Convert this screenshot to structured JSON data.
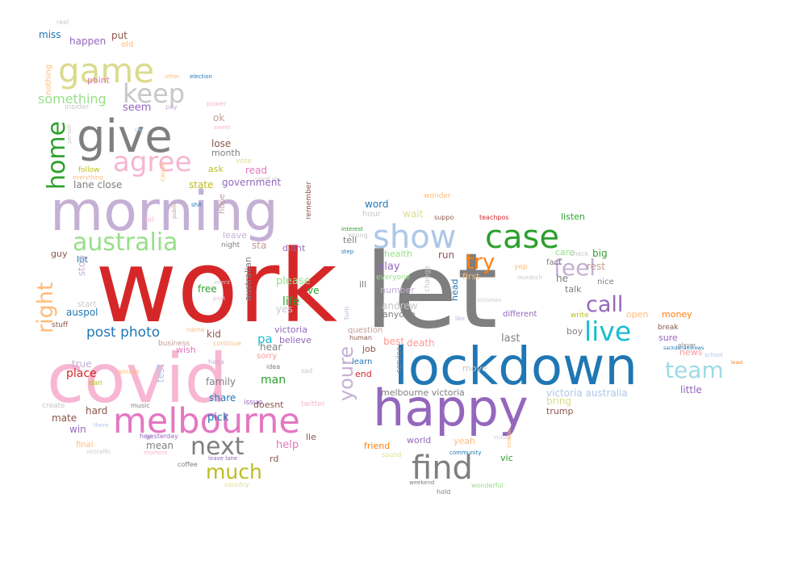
{
  "words": [
    {
      "t": "work",
      "c": "#d62728"
    },
    {
      "t": "let",
      "c": "#7f7f7f"
    },
    {
      "t": "covid",
      "c": "#f7b6d2"
    },
    {
      "t": "lockdown",
      "c": "#1f77b4"
    },
    {
      "t": "morning",
      "c": "#c5b0d5"
    },
    {
      "t": "happy",
      "c": "#9467bd"
    },
    {
      "t": "give",
      "c": "#7f7f7f"
    },
    {
      "t": "melbourne",
      "c": "#e377c2"
    },
    {
      "t": "show",
      "c": "#aec7e8"
    },
    {
      "t": "case",
      "c": "#2ca02c"
    },
    {
      "t": "find",
      "c": "#7f7f7f"
    },
    {
      "t": "game",
      "c": "#dbdb8d"
    },
    {
      "t": "agree",
      "c": "#f7b6d2"
    },
    {
      "t": "australia",
      "c": "#98df8a"
    },
    {
      "t": "keep",
      "c": "#c7c7c7"
    },
    {
      "t": "live",
      "c": "#17becf"
    },
    {
      "t": "team",
      "c": "#9edae5"
    },
    {
      "t": "home",
      "c": "#2ca02c"
    },
    {
      "t": "right",
      "c": "#ffbb78"
    },
    {
      "t": "next",
      "c": "#7f7f7f"
    },
    {
      "t": "much",
      "c": "#bcbd22"
    },
    {
      "t": "call",
      "c": "#9467bd"
    },
    {
      "t": "feel",
      "c": "#c5b0d5"
    },
    {
      "t": "try",
      "c": "#ff7f0e"
    },
    {
      "t": "youre",
      "c": "#c5b0d5"
    },
    {
      "t": "post photo",
      "c": "#1f77b4"
    },
    {
      "t": "something",
      "c": "#98df8a"
    },
    {
      "t": "miss",
      "c": "#1f77b4"
    },
    {
      "t": "happen",
      "c": "#9467bd"
    },
    {
      "t": "put",
      "c": "#8c564b"
    },
    {
      "t": "old",
      "c": "#ffbb78"
    },
    {
      "t": "real",
      "c": "#c7c7c7"
    },
    {
      "t": "nothing",
      "c": "#ffbb78"
    },
    {
      "t": "point",
      "c": "#e377c2"
    },
    {
      "t": "other",
      "c": "#ffbb78"
    },
    {
      "t": "election",
      "c": "#1f77b4"
    },
    {
      "t": "insider",
      "c": "#c7c7c7"
    },
    {
      "t": "seem",
      "c": "#9467bd"
    },
    {
      "t": "pay",
      "c": "#c5b0d5"
    },
    {
      "t": "power",
      "c": "#f7b6d2"
    },
    {
      "t": "person",
      "c": "#c7c7c7"
    },
    {
      "t": "car",
      "c": "#aec7e8"
    },
    {
      "t": "sweet",
      "c": "#f7b6d2"
    },
    {
      "t": "ok",
      "c": "#c49c94"
    },
    {
      "t": "lose",
      "c": "#8c564b"
    },
    {
      "t": "month",
      "c": "#7f7f7f"
    },
    {
      "t": "vote",
      "c": "#dbdb8d"
    },
    {
      "t": "ask",
      "c": "#bcbd22"
    },
    {
      "t": "follow",
      "c": "#bcbd22"
    },
    {
      "t": "everything",
      "c": "#ffbb78"
    },
    {
      "t": "read",
      "c": "#e377c2"
    },
    {
      "t": "covid vic",
      "c": "#c7c7c7"
    },
    {
      "t": "state",
      "c": "#bcbd22"
    },
    {
      "t": "government",
      "c": "#9467bd"
    },
    {
      "t": "lane close",
      "c": "#7f7f7f"
    },
    {
      "t": "cause",
      "c": "#ffbb78"
    },
    {
      "t": "lol",
      "c": "#f7b6d2"
    },
    {
      "t": "public",
      "c": "#c49c94"
    },
    {
      "t": "shit",
      "c": "#1f77b4"
    },
    {
      "t": "hope",
      "c": "#c49c94"
    },
    {
      "t": "remember",
      "c": "#8c564b"
    },
    {
      "t": "guy",
      "c": "#8c564b"
    },
    {
      "t": "leave",
      "c": "#c5b0d5"
    },
    {
      "t": "night",
      "c": "#7f7f7f"
    },
    {
      "t": "sta",
      "c": "#c49c94"
    },
    {
      "t": "didnt",
      "c": "#9467bd"
    },
    {
      "t": "lot",
      "c": "#1f77b4"
    },
    {
      "t": "stop",
      "c": "#c5b0d5"
    },
    {
      "t": "free",
      "c": "#2ca02c"
    },
    {
      "t": "event",
      "c": "#c7c7c7"
    },
    {
      "t": "post",
      "c": "#f7b6d2"
    },
    {
      "t": "australian",
      "c": "#7f7f7f"
    },
    {
      "t": "please",
      "c": "#98df8a"
    },
    {
      "t": "life",
      "c": "#2ca02c"
    },
    {
      "t": "ve",
      "c": "#2ca02c"
    },
    {
      "t": "yes",
      "c": "#c7c7c7"
    },
    {
      "t": "start",
      "c": "#c7c7c7"
    },
    {
      "t": "auspol",
      "c": "#1f77b4"
    },
    {
      "t": "stuff",
      "c": "#8c564b"
    },
    {
      "t": "kid",
      "c": "#8c564b"
    },
    {
      "t": "name",
      "c": "#ffbb78"
    },
    {
      "t": "pa",
      "c": "#17becf"
    },
    {
      "t": "victoria",
      "c": "#9467bd"
    },
    {
      "t": "believe",
      "c": "#9467bd"
    },
    {
      "t": "hear",
      "c": "#7f7f7f"
    },
    {
      "t": "sorry",
      "c": "#ff9896"
    },
    {
      "t": "business",
      "c": "#c49c94"
    },
    {
      "t": "continue",
      "c": "#ffbb78"
    },
    {
      "t": "wish",
      "c": "#e377c2"
    },
    {
      "t": "true",
      "c": "#c5b0d5"
    },
    {
      "t": "test",
      "c": "#aec7e8"
    },
    {
      "t": "place",
      "c": "#d62728"
    },
    {
      "t": "dan",
      "c": "#bcbd22"
    },
    {
      "t": "amaze",
      "c": "#ffbb78"
    },
    {
      "t": "haha",
      "c": "#c5b0d5"
    },
    {
      "t": "family",
      "c": "#7f7f7f"
    },
    {
      "t": "idea",
      "c": "#7f7f7f"
    },
    {
      "t": "man",
      "c": "#2ca02c"
    },
    {
      "t": "sad",
      "c": "#c7c7c7"
    },
    {
      "t": "create",
      "c": "#c7c7c7"
    },
    {
      "t": "music",
      "c": "#7f7f7f"
    },
    {
      "t": "hard",
      "c": "#8c564b"
    },
    {
      "t": "mate",
      "c": "#8c564b"
    },
    {
      "t": "win",
      "c": "#9467bd"
    },
    {
      "t": "there",
      "c": "#aec7e8"
    },
    {
      "t": "pick",
      "c": "#1f77b4"
    },
    {
      "t": "share",
      "c": "#1f77b4"
    },
    {
      "t": "issue",
      "c": "#9467bd"
    },
    {
      "t": "doesnt",
      "c": "#8c564b"
    },
    {
      "t": "twitter",
      "c": "#f7b6d2"
    },
    {
      "t": "lie",
      "c": "#8c564b"
    },
    {
      "t": "help",
      "c": "#e377c2"
    },
    {
      "t": "mean",
      "c": "#7f7f7f"
    },
    {
      "t": "hey",
      "c": "#9467bd"
    },
    {
      "t": "yesterday",
      "c": "#9467bd"
    },
    {
      "t": "final",
      "c": "#ffbb78"
    },
    {
      "t": "moment",
      "c": "#f7b6d2"
    },
    {
      "t": "victraffic",
      "c": "#c7c7c7"
    },
    {
      "t": "rd",
      "c": "#8c564b"
    },
    {
      "t": "coffee",
      "c": "#7f7f7f"
    },
    {
      "t": "leave lane",
      "c": "#9467bd"
    },
    {
      "t": "country",
      "c": "#dbdb8d"
    },
    {
      "t": "word",
      "c": "#1f77b4"
    },
    {
      "t": "wonder",
      "c": "#ffbb78"
    },
    {
      "t": "hour",
      "c": "#c7c7c7"
    },
    {
      "t": "wait",
      "c": "#dbdb8d"
    },
    {
      "t": "suppo",
      "c": "#8c564b"
    },
    {
      "t": "teachpos",
      "c": "#d62728"
    },
    {
      "t": "listen",
      "c": "#2ca02c"
    },
    {
      "t": "interest",
      "c": "#2ca02c"
    },
    {
      "t": "wrong",
      "c": "#c7c7c7"
    },
    {
      "t": "tell",
      "c": "#7f7f7f"
    },
    {
      "t": "step",
      "c": "#1f77b4"
    },
    {
      "t": "health",
      "c": "#98df8a"
    },
    {
      "t": "run",
      "c": "#8c564b"
    },
    {
      "t": "care",
      "c": "#98df8a"
    },
    {
      "t": "big",
      "c": "#2ca02c"
    },
    {
      "t": "rest",
      "c": "#c49c94"
    },
    {
      "t": "check",
      "c": "#c7c7c7"
    },
    {
      "t": "everyone",
      "c": "#98df8a"
    },
    {
      "t": "fact",
      "c": "#7f7f7f"
    },
    {
      "t": "yep",
      "c": "#ffbb78"
    },
    {
      "t": "play",
      "c": "#9467bd"
    },
    {
      "t": "first",
      "c": "#ffbb78"
    },
    {
      "t": "he",
      "c": "#7f7f7f"
    },
    {
      "t": "murdoch",
      "c": "#c7c7c7"
    },
    {
      "t": "nice",
      "c": "#7f7f7f"
    },
    {
      "t": "ill",
      "c": "#7f7f7f"
    },
    {
      "t": "number",
      "c": "#c5b0d5"
    },
    {
      "t": "change",
      "c": "#c7c7c7"
    },
    {
      "t": "talk",
      "c": "#7f7f7f"
    },
    {
      "t": "andrew",
      "c": "#c7c7c7"
    },
    {
      "t": "anyone",
      "c": "#7f7f7f"
    },
    {
      "t": "write",
      "c": "#bcbd22"
    },
    {
      "t": "open",
      "c": "#ffbb78"
    },
    {
      "t": "money",
      "c": "#ff7f0e"
    },
    {
      "t": "different",
      "c": "#9467bd"
    },
    {
      "t": "break",
      "c": "#8c564b"
    },
    {
      "t": "turn",
      "c": "#c5b0d5"
    },
    {
      "t": "question",
      "c": "#c49c94"
    },
    {
      "t": "like",
      "c": "#c5b0d5"
    },
    {
      "t": "boy",
      "c": "#7f7f7f"
    },
    {
      "t": "sure",
      "c": "#9467bd"
    },
    {
      "t": "last",
      "c": "#7f7f7f"
    },
    {
      "t": "job",
      "c": "#8c564b"
    },
    {
      "t": "best",
      "c": "#ff9896"
    },
    {
      "t": "death",
      "c": "#ff9896"
    },
    {
      "t": "learn",
      "c": "#1f77b4"
    },
    {
      "t": "player",
      "c": "#7f7f7f"
    },
    {
      "t": "sackdanandrews",
      "c": "#1f77b4"
    },
    {
      "t": "school",
      "c": "#aec7e8"
    },
    {
      "t": "least",
      "c": "#ff7f0e"
    },
    {
      "t": "news",
      "c": "#ff9896"
    },
    {
      "t": "service",
      "c": "#7f7f7f"
    },
    {
      "t": "end",
      "c": "#d62728"
    },
    {
      "t": "move",
      "c": "#c7c7c7"
    },
    {
      "t": "melbourne victoria",
      "c": "#7f7f7f"
    },
    {
      "t": "victoria australia",
      "c": "#aec7e8"
    },
    {
      "t": "little",
      "c": "#9467bd"
    },
    {
      "t": "bring",
      "c": "#dbdb8d"
    },
    {
      "t": "trump",
      "c": "#8c564b"
    },
    {
      "t": "friend",
      "c": "#ff7f0e"
    },
    {
      "t": "world",
      "c": "#9467bd"
    },
    {
      "t": "yeah",
      "c": "#ffbb78"
    },
    {
      "t": "include",
      "c": "#c7c7c7"
    },
    {
      "t": "season",
      "c": "#ffbb78"
    },
    {
      "t": "community",
      "c": "#1f77b4"
    },
    {
      "t": "sound",
      "c": "#dbdb8d"
    },
    {
      "t": "vic",
      "c": "#2ca02c"
    },
    {
      "t": "weekend",
      "c": "#7f7f7f"
    },
    {
      "t": "hold",
      "c": "#7f7f7f"
    },
    {
      "t": "wonderful",
      "c": "#98df8a"
    },
    {
      "t": "human",
      "c": "#8c564b"
    },
    {
      "t": "head",
      "c": "#1f77b4"
    },
    {
      "t": "victorian",
      "c": "#c7c7c7"
    }
  ]
}
